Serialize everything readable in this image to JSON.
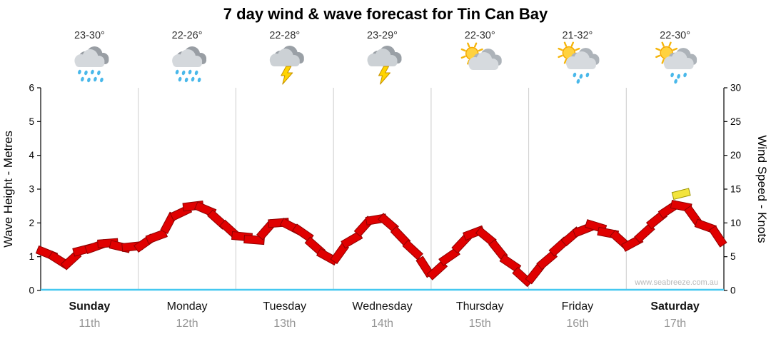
{
  "title": "7 day wind & wave forecast for Tin Can Bay",
  "watermark": "www.seabreeze.com.au",
  "days": [
    {
      "name": "Sunday",
      "date": "11th",
      "temp": "23-30°",
      "icon": "rain"
    },
    {
      "name": "Monday",
      "date": "12th",
      "temp": "22-26°",
      "icon": "rain"
    },
    {
      "name": "Tuesday",
      "date": "13th",
      "temp": "22-28°",
      "icon": "storm"
    },
    {
      "name": "Wednesday",
      "date": "14th",
      "temp": "23-29°",
      "icon": "storm"
    },
    {
      "name": "Thursday",
      "date": "15th",
      "temp": "22-30°",
      "icon": "sun-cloud"
    },
    {
      "name": "Friday",
      "date": "16th",
      "temp": "21-32°",
      "icon": "sun-cloud-rain"
    },
    {
      "name": "Saturday",
      "date": "17th",
      "temp": "22-30°",
      "icon": "sun-cloud-rain"
    }
  ],
  "chart_data": {
    "type": "line",
    "title": "7 day wind & wave forecast for Tin Can Bay",
    "left_axis": {
      "label": "Wave Height - Metres",
      "range": [
        0,
        6
      ],
      "ticks": [
        0,
        1,
        2,
        3,
        4,
        5,
        6
      ]
    },
    "right_axis": {
      "label": "Wind Speed - Knots",
      "range": [
        0,
        30
      ],
      "ticks": [
        0,
        5,
        10,
        15,
        20,
        25,
        30
      ]
    },
    "categories": [
      "Sunday",
      "Monday",
      "Tuesday",
      "Wednesday",
      "Thursday",
      "Friday",
      "Saturday"
    ],
    "points_per_day": 8,
    "series": [
      {
        "name": "Wind speed (knots)",
        "color": "#e00000",
        "values": [
          5.5,
          4.5,
          4.5,
          6,
          6.5,
          7,
          6.5,
          6.5,
          7,
          8,
          10,
          11.5,
          12.5,
          12,
          10.5,
          9,
          8,
          7.5,
          9,
          10,
          9.5,
          8.5,
          6.5,
          5,
          5.5,
          7.5,
          9.5,
          10.5,
          10,
          8,
          6,
          3.5,
          3,
          5,
          7,
          8.5,
          8,
          6,
          4,
          2,
          2.5,
          4.5,
          6.5,
          8,
          9,
          9.5,
          8.5,
          7.5,
          7,
          8.5,
          10.5,
          12,
          12.5,
          11,
          9.5,
          8
        ]
      }
    ],
    "annotations": [
      {
        "type": "yellow-flag",
        "index": 52
      }
    ],
    "grid": "vertical-day-boundaries",
    "legend": "none",
    "colors": {
      "series": "#e00000",
      "baseline": "#45c8f0",
      "grid": "#cccccc",
      "dates": "#969696"
    }
  }
}
